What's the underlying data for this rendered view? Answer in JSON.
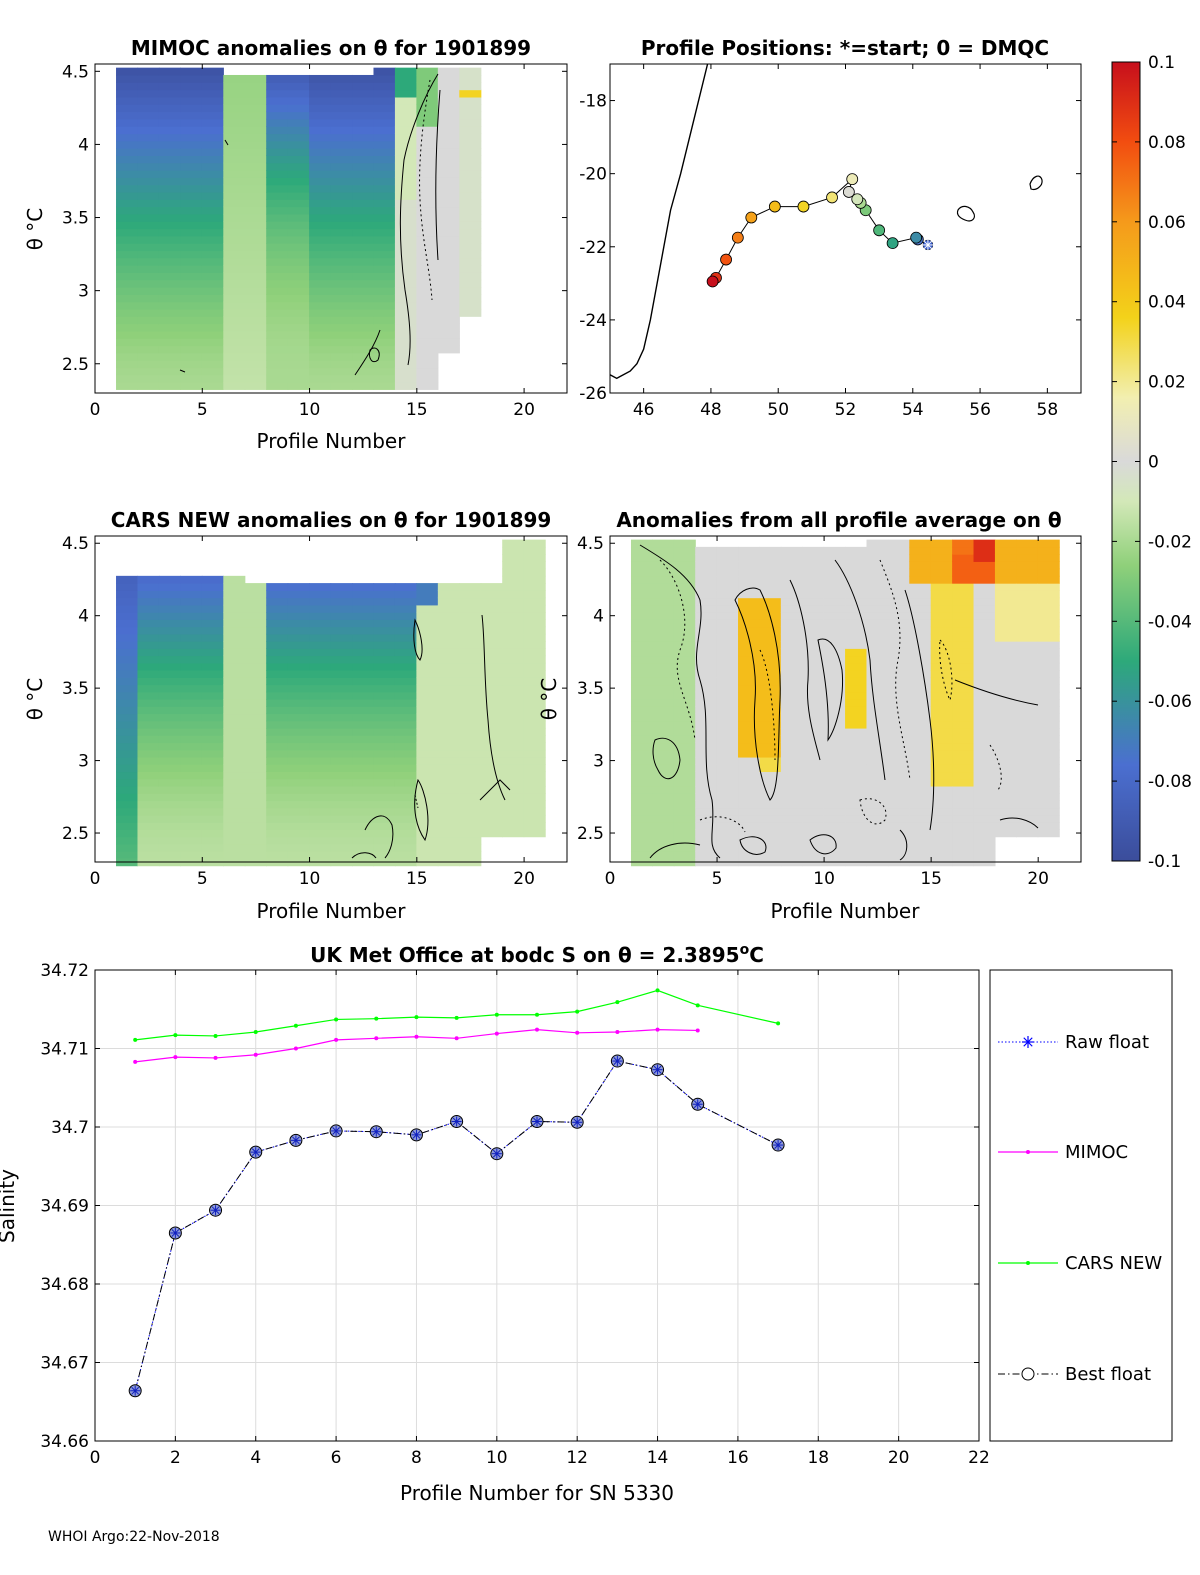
{
  "footer": "WHOI Argo:22-Nov-2018",
  "colorbar": {
    "ticks": [
      "0.1",
      "0.08",
      "0.06",
      "0.04",
      "0.02",
      "0",
      "-0.02",
      "-0.04",
      "-0.06",
      "-0.08",
      "-0.1"
    ],
    "min": -0.1,
    "max": 0.1
  },
  "chart_data": [
    {
      "id": "mimoc",
      "type": "heatmap",
      "title": "MIMOC anomalies on θ  for 1901899",
      "xlabel": "Profile Number",
      "ylabel": "θ °C",
      "xlim": [
        0,
        22
      ],
      "ylim": [
        2.3,
        4.55
      ],
      "xticks": [
        "0",
        "5",
        "10",
        "15",
        "20"
      ],
      "yticks": [
        "4.5",
        "4",
        "3.5",
        "3",
        "2.5"
      ],
      "grid_note": "profiles 1-17, theta bins 2.35-4.50 step 0.05; anomaly colors from -0.1 (blue) to 0.1 (red)"
    },
    {
      "id": "positions",
      "type": "line",
      "title": "Profile Positions: *=start; 0 = DMQC",
      "xlim": [
        45,
        59
      ],
      "ylim": [
        -26,
        -17
      ],
      "xticks": [
        "46",
        "48",
        "50",
        "52",
        "54",
        "56",
        "58"
      ],
      "yticks": [
        "-18",
        "-20",
        "-22",
        "-24",
        "-26"
      ],
      "track": {
        "lon": [
          54.45,
          54.15,
          54.1,
          53.4,
          53.0,
          52.6,
          52.45,
          52.35,
          52.1,
          52.2,
          51.6,
          50.75,
          49.9,
          49.2,
          48.8,
          48.45,
          48.15,
          48.05
        ],
        "lat": [
          -21.95,
          -21.8,
          -21.75,
          -21.9,
          -21.55,
          -21.0,
          -20.8,
          -20.7,
          -20.5,
          -20.15,
          -20.65,
          -20.9,
          -20.9,
          -21.2,
          -21.75,
          -22.35,
          -22.85,
          -22.95
        ]
      },
      "coast": {
        "lon": [
          47.9,
          47.5,
          47.1,
          46.8,
          46.6,
          46.4,
          46.2,
          46.0,
          45.8,
          45.6,
          45.3,
          45.2,
          45.0
        ],
        "lat": [
          -17.0,
          -18.5,
          -20.0,
          -21.0,
          -22.0,
          -23.0,
          -24.0,
          -24.8,
          -25.2,
          -25.4,
          -25.55,
          -25.6,
          -25.5
        ]
      }
    },
    {
      "id": "cars",
      "type": "heatmap",
      "title": "CARS NEW anomalies on θ for 1901899",
      "xlabel": "Profile Number",
      "ylabel": "θ °C",
      "xlim": [
        0,
        22
      ],
      "ylim": [
        2.3,
        4.55
      ],
      "xticks": [
        "0",
        "5",
        "10",
        "15",
        "20"
      ],
      "yticks": [
        "4.5",
        "4",
        "3.5",
        "3",
        "2.5"
      ]
    },
    {
      "id": "allavg",
      "type": "heatmap",
      "title": "Anomalies from all profile average on θ",
      "xlabel": "Profile Number",
      "ylabel": "θ °C",
      "xlim": [
        0,
        22
      ],
      "ylim": [
        2.3,
        4.55
      ],
      "xticks": [
        "0",
        "5",
        "10",
        "15",
        "20"
      ],
      "yticks": [
        "4.5",
        "4",
        "3.5",
        "3",
        "2.5"
      ]
    },
    {
      "id": "salinity",
      "type": "line",
      "title": "UK Met Office at bodc S on θ = 2.3895°C",
      "title_main": "UK Met Office at bodc S on θ = 2.3895",
      "title_sup": "o",
      "title_end": "C",
      "xlabel": "Profile Number for SN 5330",
      "ylabel": "Salinity",
      "xlim": [
        0,
        22
      ],
      "ylim": [
        34.66,
        34.72
      ],
      "xticks": [
        "0",
        "2",
        "4",
        "6",
        "8",
        "10",
        "12",
        "14",
        "16",
        "18",
        "20",
        "22"
      ],
      "yticks": [
        "34.72",
        "34.71",
        "34.7",
        "34.69",
        "34.68",
        "34.67",
        "34.66"
      ],
      "legend_position": "right",
      "series": [
        {
          "name": "Raw float",
          "color": "#0000ff",
          "x": [
            1,
            2,
            3,
            4,
            5,
            6,
            7,
            8,
            9,
            10,
            11,
            12,
            13,
            14,
            15,
            17
          ],
          "values": [
            34.6664,
            34.6865,
            34.6894,
            34.6968,
            34.6983,
            34.6995,
            34.6994,
            34.699,
            34.7007,
            34.6966,
            34.7007,
            34.7006,
            34.7084,
            34.7073,
            34.7029,
            34.6977
          ]
        },
        {
          "name": "MIMOC",
          "color": "#ff00ff",
          "x": [
            1,
            2,
            3,
            4,
            5,
            6,
            7,
            8,
            9,
            10,
            11,
            12,
            13,
            14,
            15
          ],
          "values": [
            34.7083,
            34.7089,
            34.7088,
            34.7092,
            34.71,
            34.7111,
            34.7113,
            34.7115,
            34.7113,
            34.7119,
            34.7124,
            34.712,
            34.7121,
            34.7124,
            34.7123
          ]
        },
        {
          "name": "CARS NEW",
          "color": "#00ff00",
          "x": [
            1,
            2,
            3,
            4,
            5,
            6,
            7,
            8,
            9,
            10,
            11,
            12,
            13,
            14,
            15,
            17
          ],
          "values": [
            34.7111,
            34.7117,
            34.7116,
            34.7121,
            34.7129,
            34.7137,
            34.7138,
            34.714,
            34.7139,
            34.7143,
            34.7143,
            34.7147,
            34.7159,
            34.7174,
            34.7155,
            34.7132
          ]
        },
        {
          "name": "Best float",
          "color": "#000000",
          "x": [
            1,
            2,
            3,
            4,
            5,
            6,
            7,
            8,
            9,
            10,
            11,
            12,
            13,
            14,
            15,
            17
          ],
          "values": [
            34.6664,
            34.6865,
            34.6894,
            34.6968,
            34.6983,
            34.6995,
            34.6994,
            34.699,
            34.7007,
            34.6966,
            34.7007,
            34.7006,
            34.7084,
            34.7073,
            34.7029,
            34.6977
          ]
        }
      ]
    }
  ]
}
